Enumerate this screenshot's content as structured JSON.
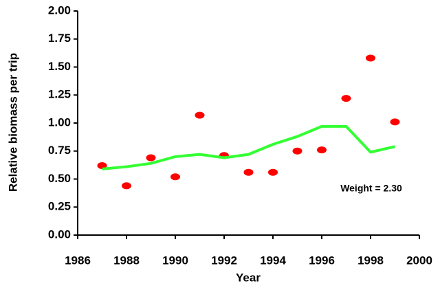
{
  "chart_data": {
    "type": "scatter",
    "x_label": "Year",
    "y_label": "Relative biomass per trip",
    "annotation": "Weight = 2.30",
    "x": [
      1987,
      1988,
      1989,
      1990,
      1991,
      1992,
      1993,
      1994,
      1995,
      1996,
      1997,
      1998,
      1999
    ],
    "series": [
      {
        "type": "scatter",
        "color": "#ff0000",
        "values": [
          0.62,
          0.44,
          0.69,
          0.52,
          1.07,
          0.71,
          0.56,
          0.56,
          0.75,
          0.76,
          1.22,
          1.58,
          1.01
        ]
      },
      {
        "type": "line",
        "color": "#33ff33",
        "values": [
          0.59,
          0.61,
          0.64,
          0.7,
          0.72,
          0.69,
          0.72,
          0.81,
          0.88,
          0.97,
          0.97,
          0.74,
          0.79
        ]
      }
    ],
    "xlim": [
      1986,
      2000
    ],
    "xticks": [
      1986,
      1988,
      1990,
      1992,
      1994,
      1996,
      1998,
      2000
    ],
    "ylim": [
      0,
      2
    ],
    "yticks": [
      {
        "value": 0,
        "label": "0.00"
      },
      {
        "value": 0.25,
        "label": "0.25"
      },
      {
        "value": 0.5,
        "label": "0.50"
      },
      {
        "value": 0.75,
        "label": "0.75"
      },
      {
        "value": 1,
        "label": "1.00"
      },
      {
        "value": 1.25,
        "label": "1.25"
      },
      {
        "value": 1.5,
        "label": "1.50"
      },
      {
        "value": 1.75,
        "label": "1.75"
      },
      {
        "value": 2,
        "label": "2.00"
      }
    ],
    "grid": false
  }
}
